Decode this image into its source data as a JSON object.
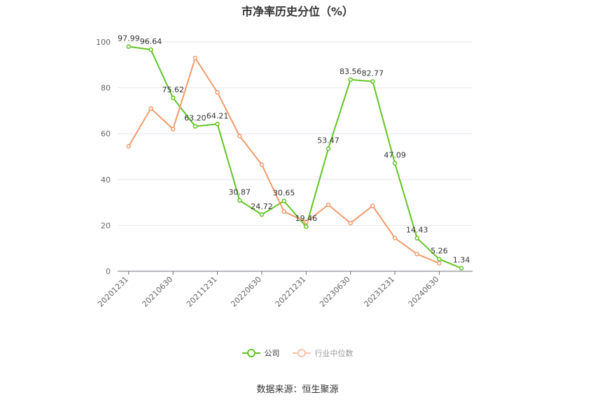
{
  "chart_data": {
    "type": "line",
    "title": "市净率历史分位（%）",
    "x": [
      "20201231",
      "20210331",
      "20210630",
      "20210930",
      "20211231",
      "20220331",
      "20220630",
      "20220930",
      "20221231",
      "20230331",
      "20230630",
      "20230930",
      "20231231",
      "20240331",
      "20240630",
      "20240930"
    ],
    "x_tick_labels": [
      "20201231",
      "20210630",
      "20211231",
      "20220630",
      "20221231",
      "20230630",
      "20231231",
      "20240630"
    ],
    "ylim": [
      0,
      100
    ],
    "y_ticks": [
      0,
      20,
      40,
      60,
      80,
      100
    ],
    "grid": true,
    "legend_position": "bottom",
    "series": [
      {
        "name": "公司",
        "color": "#5fc523",
        "values": [
          97.99,
          96.64,
          75.62,
          63.2,
          64.21,
          30.87,
          24.72,
          30.65,
          19.46,
          53.47,
          83.56,
          82.77,
          47.09,
          14.43,
          5.26,
          1.34
        ],
        "data_labels": [
          "97.99",
          "96.64",
          "75.62",
          "63.20",
          "64.21",
          "30.87",
          "24.72",
          "30.65",
          "19.46",
          "53.47",
          "83.56",
          "82.77",
          "47.09",
          "14.43",
          "5.26",
          "1.34"
        ]
      },
      {
        "name": "行业中位数",
        "color": "#f29a6c",
        "values": [
          54.5,
          71.0,
          62.0,
          93.0,
          78.0,
          59.0,
          46.5,
          26.0,
          21.5,
          29.0,
          21.0,
          28.5,
          14.5,
          7.5,
          3.5,
          null
        ]
      }
    ]
  },
  "source_text": "数据来源：恒生聚源"
}
